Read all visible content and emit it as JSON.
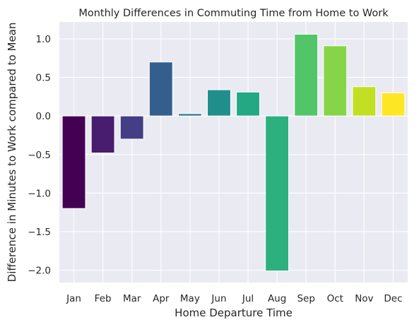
{
  "chart_data": {
    "type": "bar",
    "title": "Monthly Differences in Commuting Time from Home to Work",
    "xlabel": "Home Departure Time",
    "ylabel": "Difference in Minutes to Work compared to Mean",
    "categories": [
      "Jan",
      "Feb",
      "Mar",
      "Apr",
      "May",
      "Jun",
      "Jul",
      "Aug",
      "Sep",
      "Oct",
      "Nov",
      "Dec"
    ],
    "values": [
      -1.2,
      -0.48,
      -0.3,
      0.7,
      0.03,
      0.34,
      0.31,
      -2.01,
      1.06,
      0.91,
      0.38,
      0.3
    ],
    "colors": [
      "#440154",
      "#481d6f",
      "#433e85",
      "#345f8d",
      "#29788e",
      "#208f8c",
      "#23a883",
      "#2cb17e",
      "#52c569",
      "#86d549",
      "#c2df23",
      "#fde725"
    ],
    "ylim": [
      -2.16,
      1.22
    ],
    "yticks": [
      -2.0,
      -1.5,
      -1.0,
      -0.5,
      0.0,
      0.5,
      1.0
    ],
    "ytick_labels": [
      "−2.0",
      "−1.5",
      "−1.0",
      "−0.5",
      "0.0",
      "0.5",
      "1.0"
    ],
    "grid": true,
    "plot_background": "#eaeaf2",
    "grid_color": "#ffffff"
  }
}
